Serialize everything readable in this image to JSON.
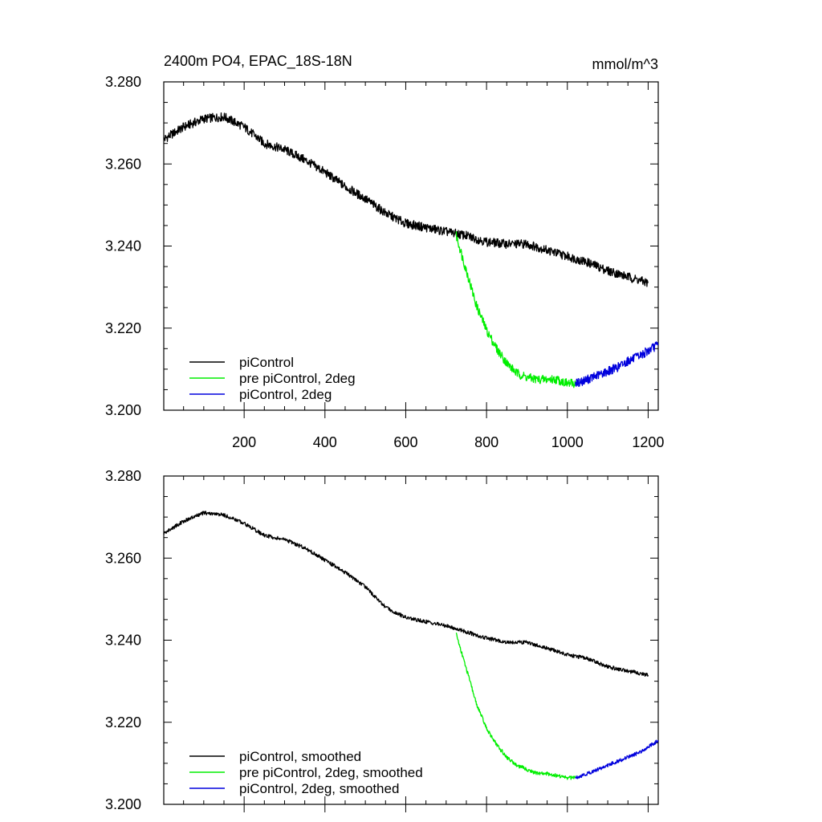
{
  "header": {
    "title": "2400m PO4, EPAC_18S-18N",
    "units": "mmol/m^3"
  },
  "colors": {
    "piControl": "#000000",
    "pre_piControl_2deg": "#00ee00",
    "piControl_2deg": "#0000dd"
  },
  "chart_data": [
    {
      "type": "line",
      "panel": "raw",
      "xlim": [
        1,
        1225
      ],
      "ylim": [
        3.2,
        3.28
      ],
      "xticks": [
        200,
        400,
        600,
        800,
        1000,
        1200
      ],
      "xtick_labels": [
        "200",
        "400",
        "600",
        "800",
        "1000",
        "1200"
      ],
      "yticks": [
        3.2,
        3.22,
        3.24,
        3.26,
        3.28
      ],
      "ytick_labels": [
        "3.200",
        "3.220",
        "3.240",
        "3.260",
        "3.280"
      ],
      "legend_position": "bottom-left",
      "series": [
        {
          "name": "piControl",
          "x": [
            1,
            50,
            100,
            150,
            200,
            250,
            300,
            350,
            400,
            450,
            500,
            550,
            600,
            650,
            700,
            750,
            800,
            850,
            900,
            950,
            1000,
            1050,
            1100,
            1150,
            1200
          ],
          "y": [
            3.266,
            3.269,
            3.271,
            3.2715,
            3.269,
            3.265,
            3.2635,
            3.261,
            3.258,
            3.2545,
            3.2515,
            3.248,
            3.2455,
            3.2445,
            3.2435,
            3.2425,
            3.241,
            3.2405,
            3.2405,
            3.239,
            3.2375,
            3.236,
            3.234,
            3.2325,
            3.231
          ]
        },
        {
          "name": "pre piControl, 2deg",
          "x": [
            725,
            750,
            775,
            800,
            825,
            850,
            875,
            900,
            925,
            950,
            975,
            1000,
            1020
          ],
          "y": [
            3.2425,
            3.234,
            3.2255,
            3.2195,
            3.215,
            3.2115,
            3.209,
            3.208,
            3.2075,
            3.2075,
            3.2075,
            3.2065,
            3.2065
          ]
        },
        {
          "name": "piControl, 2deg",
          "x": [
            1020,
            1050,
            1075,
            1100,
            1125,
            1150,
            1175,
            1200,
            1225
          ],
          "y": [
            3.2065,
            3.2075,
            3.2085,
            3.2095,
            3.2105,
            3.212,
            3.213,
            3.2145,
            3.216
          ]
        }
      ]
    },
    {
      "type": "line",
      "panel": "smoothed",
      "xlim": [
        1,
        1225
      ],
      "ylim": [
        3.2,
        3.28
      ],
      "yticks": [
        3.2,
        3.22,
        3.24,
        3.26,
        3.28
      ],
      "ytick_labels": [
        "3.200",
        "3.220",
        "3.240",
        "3.260",
        "3.280"
      ],
      "legend_position": "bottom-left",
      "series": [
        {
          "name": "piControl, smoothed",
          "x": [
            1,
            50,
            100,
            150,
            200,
            250,
            300,
            350,
            400,
            450,
            500,
            550,
            600,
            650,
            700,
            750,
            800,
            850,
            900,
            950,
            1000,
            1050,
            1100,
            1150,
            1200
          ],
          "y": [
            3.266,
            3.269,
            3.271,
            3.2705,
            3.2685,
            3.2655,
            3.2645,
            3.2625,
            3.2595,
            3.2565,
            3.253,
            3.248,
            3.2455,
            3.2445,
            3.2435,
            3.242,
            3.2405,
            3.2395,
            3.2395,
            3.238,
            3.2365,
            3.2355,
            3.2335,
            3.2325,
            3.2315
          ]
        },
        {
          "name": "pre piControl, 2deg, smoothed",
          "x": [
            725,
            750,
            775,
            800,
            825,
            850,
            875,
            900,
            925,
            950,
            975,
            1000,
            1020
          ],
          "y": [
            3.2415,
            3.233,
            3.2245,
            3.2185,
            3.2145,
            3.2115,
            3.2095,
            3.2085,
            3.2075,
            3.2075,
            3.207,
            3.2065,
            3.2065
          ]
        },
        {
          "name": "piControl, 2deg, smoothed",
          "x": [
            1020,
            1050,
            1075,
            1100,
            1125,
            1150,
            1175,
            1200,
            1225
          ],
          "y": [
            3.2065,
            3.2075,
            3.2085,
            3.2095,
            3.2105,
            3.2115,
            3.2125,
            3.214,
            3.2155
          ]
        }
      ]
    }
  ]
}
